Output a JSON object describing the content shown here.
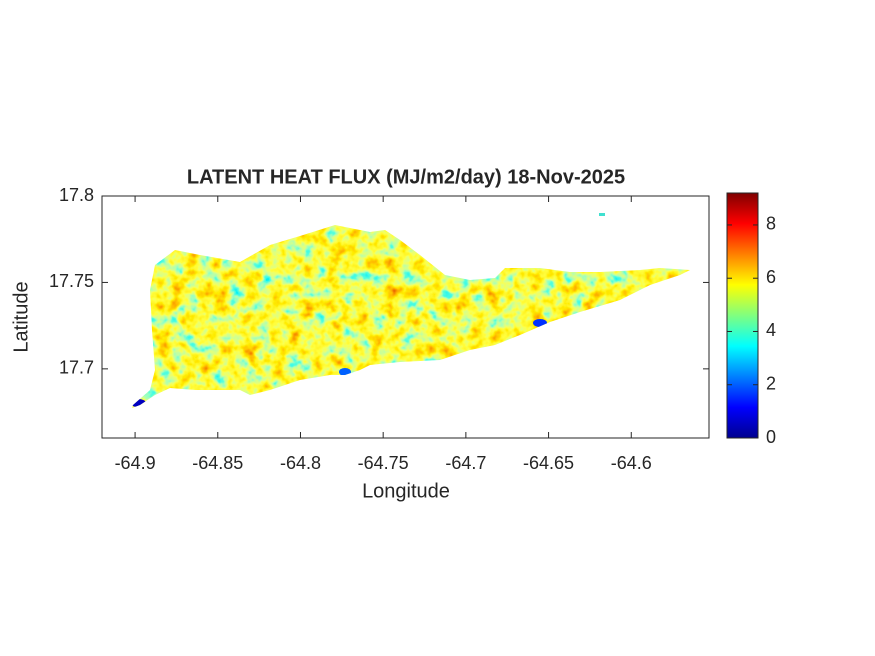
{
  "chart_data": {
    "type": "heatmap-map",
    "title": "LATENT HEAT FLUX (MJ/m2/day) 18-Nov-2025",
    "xlabel": "Longitude",
    "ylabel": "Latitude",
    "xlim": [
      -64.92,
      -64.553
    ],
    "ylim": [
      17.66,
      17.8
    ],
    "xticks": [
      -64.9,
      -64.85,
      -64.8,
      -64.75,
      -64.7,
      -64.65,
      -64.6
    ],
    "yticks": [
      17.7,
      17.75,
      17.8
    ],
    "colorbar": {
      "clim": [
        0,
        9.2
      ],
      "ticks": [
        0,
        2,
        4,
        6,
        8
      ]
    }
  }
}
